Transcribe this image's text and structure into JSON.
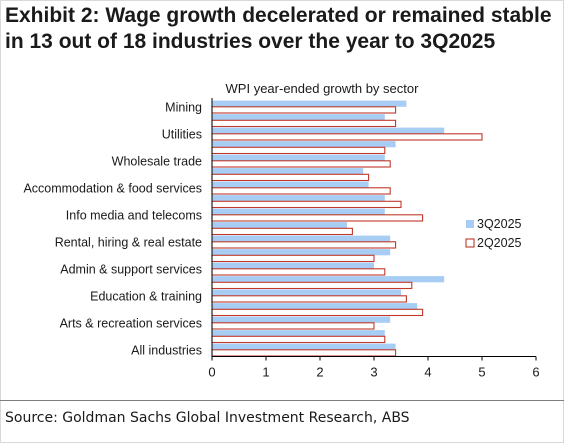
{
  "header": {
    "title": "Exhibit 2: Wage growth decelerated or remained stable in 13 out of 18 industries over the year to 3Q2025"
  },
  "footer": {
    "source": "Source: Goldman Sachs Global Investment Research, ABS"
  },
  "colors": {
    "q3": "#a7cdf4",
    "q2_fill": "#ffffff",
    "q2_border": "#c0392b",
    "axis": "#000000",
    "text": "#1a1a1a"
  },
  "chart_data": {
    "type": "bar",
    "orientation": "horizontal",
    "title": "WPI year-ended growth by sector",
    "xlim": [
      0,
      6
    ],
    "xticks": [
      "0",
      "1",
      "2",
      "3",
      "4",
      "5",
      "6"
    ],
    "categories": [
      "Mining",
      "",
      "Utilities",
      "",
      "Wholesale trade",
      "",
      "Accommodation & food services",
      "",
      "Info media and telecoms",
      "",
      "Rental, hiring & real estate",
      "",
      "Admin & support services",
      "",
      "Education & training",
      "",
      "Arts & recreation services",
      "",
      "All industries"
    ],
    "legend_position": "right",
    "series": [
      {
        "name": "3Q2025",
        "values": [
          3.6,
          3.2,
          4.3,
          3.4,
          3.2,
          2.8,
          2.9,
          3.2,
          3.2,
          2.5,
          3.3,
          3.3,
          3.0,
          4.3,
          3.5,
          3.8,
          3.3,
          3.2,
          3.4
        ]
      },
      {
        "name": "2Q2025",
        "values": [
          3.4,
          3.4,
          5.0,
          3.2,
          3.3,
          2.9,
          3.3,
          3.5,
          3.9,
          2.6,
          3.4,
          3.0,
          3.2,
          3.7,
          3.6,
          3.9,
          3.0,
          3.2,
          3.4
        ]
      }
    ]
  }
}
